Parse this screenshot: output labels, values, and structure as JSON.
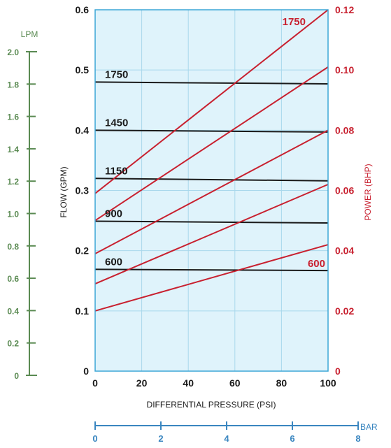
{
  "colors": {
    "plot_bg": "#dff3fb",
    "grid": "#a9d8ec",
    "frame": "#3ba6d6",
    "flow": "#1a1a1a",
    "power": "#c8202f",
    "lpm": "#5a8a52",
    "bar": "#3a86c0"
  },
  "chart_data": {
    "type": "line",
    "xlabel": "DIFFERENTIAL PRESSURE  (PSI)",
    "ylabel_left": "FLOW  (GPM)",
    "ylabel_right": "POWER  (BHP)",
    "x_ticks": [
      "0",
      "20",
      "40",
      "60",
      "80",
      "100"
    ],
    "y_ticks": [
      "0",
      "0.1",
      "0.2",
      "0.3",
      "0.4",
      "0.5",
      "0.6"
    ],
    "y2_ticks": [
      "0",
      "0.02",
      "0.04",
      "0.06",
      "0.08",
      "0.10",
      "0.12"
    ],
    "xlim": [
      0,
      100
    ],
    "ylim": [
      0,
      0.6
    ],
    "y2lim": [
      0,
      0.12
    ],
    "grid": true,
    "lpm_axis": {
      "title": "LPM",
      "ticks": [
        "0",
        "0.2",
        "0.4",
        "0.6",
        "0.8",
        "1.0",
        "1.2",
        "1.4",
        "1.6",
        "1.8",
        "2.0"
      ],
      "range": [
        0,
        2.0
      ]
    },
    "bar_axis": {
      "title": "BAR",
      "ticks": [
        "0",
        "2",
        "4",
        "6",
        "8"
      ],
      "range": [
        0,
        8
      ]
    },
    "flow_series": [
      {
        "name": "1750",
        "x": [
          0,
          100
        ],
        "y": [
          0.48,
          0.477
        ]
      },
      {
        "name": "1450",
        "x": [
          0,
          100
        ],
        "y": [
          0.4,
          0.397
        ]
      },
      {
        "name": "1150",
        "x": [
          0,
          100
        ],
        "y": [
          0.32,
          0.316
        ]
      },
      {
        "name": "900",
        "x": [
          0,
          100
        ],
        "y": [
          0.249,
          0.246
        ]
      },
      {
        "name": "600",
        "x": [
          0,
          100
        ],
        "y": [
          0.169,
          0.167
        ]
      }
    ],
    "power_series": [
      {
        "name": "1750",
        "x": [
          0,
          100
        ],
        "y": [
          0.059,
          0.12
        ]
      },
      {
        "name": "",
        "x": [
          0,
          100
        ],
        "y": [
          0.05,
          0.101
        ]
      },
      {
        "name": "",
        "x": [
          0,
          100
        ],
        "y": [
          0.039,
          0.08
        ]
      },
      {
        "name": "",
        "x": [
          0,
          100
        ],
        "y": [
          0.029,
          0.062
        ]
      },
      {
        "name": "600",
        "x": [
          0,
          100
        ],
        "y": [
          0.02,
          0.042
        ]
      }
    ]
  }
}
